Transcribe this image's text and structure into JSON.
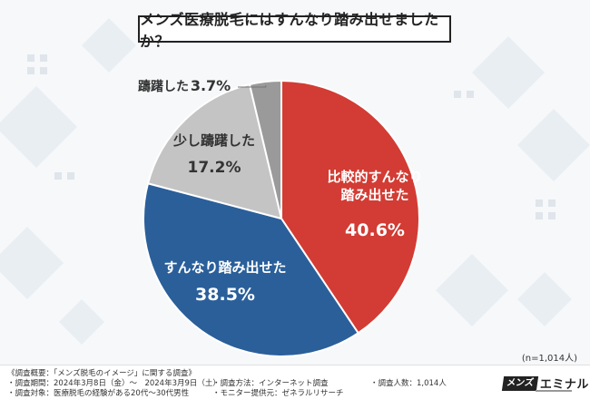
{
  "title": "メンズ医療脱毛にはすんなり踏み出せましたか？",
  "sample_note": "(n=1,014人)",
  "chart_data": {
    "type": "pie",
    "title": "メンズ医療脱毛にはすんなり踏み出せましたか？",
    "slices": [
      {
        "label_lines": [
          "比較的すんなり",
          "踏み出せた"
        ],
        "value": 40.6,
        "value_text": "40.6%",
        "color": "#d23c34",
        "label_color": "#ffffff"
      },
      {
        "label_lines": [
          "すんなり踏み出せた"
        ],
        "value": 38.5,
        "value_text": "38.5%",
        "color": "#2a5f9a",
        "label_color": "#ffffff"
      },
      {
        "label_lines": [
          "少し躊躇した"
        ],
        "value": 17.2,
        "value_text": "17.2%",
        "color": "#c4c4c4",
        "label_color": "#333333"
      },
      {
        "label_lines": [
          "躊躇した"
        ],
        "value": 3.7,
        "value_text": "3.7%",
        "color": "#9a9a9a",
        "label_color": "#333333"
      }
    ],
    "legend": "none"
  },
  "footer": {
    "lines": [
      "《調査概要：「メンズ脱毛のイメージ」に関する調査》",
      "・調査期間：2024年3月8日（金）～　2024年3月9日（土）",
      "・調査対象：医療脱毛の経験がある20代〜30代男性"
    ],
    "method": "・調査方法：インターネット調査",
    "provider": "・モニター提供元：ゼネラルリサーチ",
    "count": "・調査人数：1,014人",
    "logo_mark": "メンズ",
    "logo_text": "エミナル"
  }
}
